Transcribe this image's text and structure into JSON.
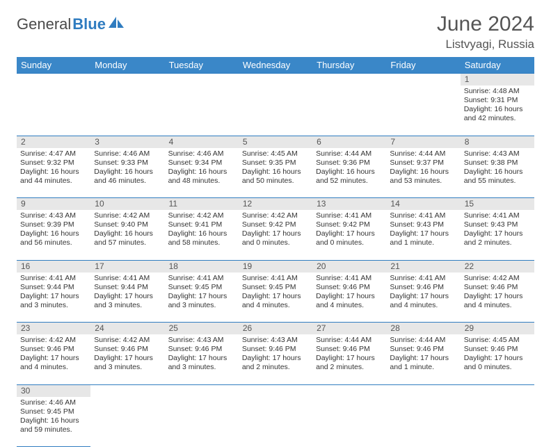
{
  "brand": {
    "part1": "General",
    "part2": "Blue"
  },
  "title": "June 2024",
  "location": "Listvyagi, Russia",
  "colors": {
    "header_bg": "#3a87c8",
    "header_text": "#ffffff",
    "daynum_bg": "#e7e7e7",
    "border": "#2f7cc0",
    "text": "#333333",
    "title_text": "#555555"
  },
  "weekdays": [
    "Sunday",
    "Monday",
    "Tuesday",
    "Wednesday",
    "Thursday",
    "Friday",
    "Saturday"
  ],
  "weeks": [
    [
      null,
      null,
      null,
      null,
      null,
      null,
      {
        "n": "1",
        "sunrise": "Sunrise: 4:48 AM",
        "sunset": "Sunset: 9:31 PM",
        "day1": "Daylight: 16 hours",
        "day2": "and 42 minutes."
      }
    ],
    [
      {
        "n": "2",
        "sunrise": "Sunrise: 4:47 AM",
        "sunset": "Sunset: 9:32 PM",
        "day1": "Daylight: 16 hours",
        "day2": "and 44 minutes."
      },
      {
        "n": "3",
        "sunrise": "Sunrise: 4:46 AM",
        "sunset": "Sunset: 9:33 PM",
        "day1": "Daylight: 16 hours",
        "day2": "and 46 minutes."
      },
      {
        "n": "4",
        "sunrise": "Sunrise: 4:46 AM",
        "sunset": "Sunset: 9:34 PM",
        "day1": "Daylight: 16 hours",
        "day2": "and 48 minutes."
      },
      {
        "n": "5",
        "sunrise": "Sunrise: 4:45 AM",
        "sunset": "Sunset: 9:35 PM",
        "day1": "Daylight: 16 hours",
        "day2": "and 50 minutes."
      },
      {
        "n": "6",
        "sunrise": "Sunrise: 4:44 AM",
        "sunset": "Sunset: 9:36 PM",
        "day1": "Daylight: 16 hours",
        "day2": "and 52 minutes."
      },
      {
        "n": "7",
        "sunrise": "Sunrise: 4:44 AM",
        "sunset": "Sunset: 9:37 PM",
        "day1": "Daylight: 16 hours",
        "day2": "and 53 minutes."
      },
      {
        "n": "8",
        "sunrise": "Sunrise: 4:43 AM",
        "sunset": "Sunset: 9:38 PM",
        "day1": "Daylight: 16 hours",
        "day2": "and 55 minutes."
      }
    ],
    [
      {
        "n": "9",
        "sunrise": "Sunrise: 4:43 AM",
        "sunset": "Sunset: 9:39 PM",
        "day1": "Daylight: 16 hours",
        "day2": "and 56 minutes."
      },
      {
        "n": "10",
        "sunrise": "Sunrise: 4:42 AM",
        "sunset": "Sunset: 9:40 PM",
        "day1": "Daylight: 16 hours",
        "day2": "and 57 minutes."
      },
      {
        "n": "11",
        "sunrise": "Sunrise: 4:42 AM",
        "sunset": "Sunset: 9:41 PM",
        "day1": "Daylight: 16 hours",
        "day2": "and 58 minutes."
      },
      {
        "n": "12",
        "sunrise": "Sunrise: 4:42 AM",
        "sunset": "Sunset: 9:42 PM",
        "day1": "Daylight: 17 hours",
        "day2": "and 0 minutes."
      },
      {
        "n": "13",
        "sunrise": "Sunrise: 4:41 AM",
        "sunset": "Sunset: 9:42 PM",
        "day1": "Daylight: 17 hours",
        "day2": "and 0 minutes."
      },
      {
        "n": "14",
        "sunrise": "Sunrise: 4:41 AM",
        "sunset": "Sunset: 9:43 PM",
        "day1": "Daylight: 17 hours",
        "day2": "and 1 minute."
      },
      {
        "n": "15",
        "sunrise": "Sunrise: 4:41 AM",
        "sunset": "Sunset: 9:43 PM",
        "day1": "Daylight: 17 hours",
        "day2": "and 2 minutes."
      }
    ],
    [
      {
        "n": "16",
        "sunrise": "Sunrise: 4:41 AM",
        "sunset": "Sunset: 9:44 PM",
        "day1": "Daylight: 17 hours",
        "day2": "and 3 minutes."
      },
      {
        "n": "17",
        "sunrise": "Sunrise: 4:41 AM",
        "sunset": "Sunset: 9:44 PM",
        "day1": "Daylight: 17 hours",
        "day2": "and 3 minutes."
      },
      {
        "n": "18",
        "sunrise": "Sunrise: 4:41 AM",
        "sunset": "Sunset: 9:45 PM",
        "day1": "Daylight: 17 hours",
        "day2": "and 3 minutes."
      },
      {
        "n": "19",
        "sunrise": "Sunrise: 4:41 AM",
        "sunset": "Sunset: 9:45 PM",
        "day1": "Daylight: 17 hours",
        "day2": "and 4 minutes."
      },
      {
        "n": "20",
        "sunrise": "Sunrise: 4:41 AM",
        "sunset": "Sunset: 9:46 PM",
        "day1": "Daylight: 17 hours",
        "day2": "and 4 minutes."
      },
      {
        "n": "21",
        "sunrise": "Sunrise: 4:41 AM",
        "sunset": "Sunset: 9:46 PM",
        "day1": "Daylight: 17 hours",
        "day2": "and 4 minutes."
      },
      {
        "n": "22",
        "sunrise": "Sunrise: 4:42 AM",
        "sunset": "Sunset: 9:46 PM",
        "day1": "Daylight: 17 hours",
        "day2": "and 4 minutes."
      }
    ],
    [
      {
        "n": "23",
        "sunrise": "Sunrise: 4:42 AM",
        "sunset": "Sunset: 9:46 PM",
        "day1": "Daylight: 17 hours",
        "day2": "and 4 minutes."
      },
      {
        "n": "24",
        "sunrise": "Sunrise: 4:42 AM",
        "sunset": "Sunset: 9:46 PM",
        "day1": "Daylight: 17 hours",
        "day2": "and 3 minutes."
      },
      {
        "n": "25",
        "sunrise": "Sunrise: 4:43 AM",
        "sunset": "Sunset: 9:46 PM",
        "day1": "Daylight: 17 hours",
        "day2": "and 3 minutes."
      },
      {
        "n": "26",
        "sunrise": "Sunrise: 4:43 AM",
        "sunset": "Sunset: 9:46 PM",
        "day1": "Daylight: 17 hours",
        "day2": "and 2 minutes."
      },
      {
        "n": "27",
        "sunrise": "Sunrise: 4:44 AM",
        "sunset": "Sunset: 9:46 PM",
        "day1": "Daylight: 17 hours",
        "day2": "and 2 minutes."
      },
      {
        "n": "28",
        "sunrise": "Sunrise: 4:44 AM",
        "sunset": "Sunset: 9:46 PM",
        "day1": "Daylight: 17 hours",
        "day2": "and 1 minute."
      },
      {
        "n": "29",
        "sunrise": "Sunrise: 4:45 AM",
        "sunset": "Sunset: 9:46 PM",
        "day1": "Daylight: 17 hours",
        "day2": "and 0 minutes."
      }
    ],
    [
      {
        "n": "30",
        "sunrise": "Sunrise: 4:46 AM",
        "sunset": "Sunset: 9:45 PM",
        "day1": "Daylight: 16 hours",
        "day2": "and 59 minutes."
      },
      null,
      null,
      null,
      null,
      null,
      null
    ]
  ]
}
